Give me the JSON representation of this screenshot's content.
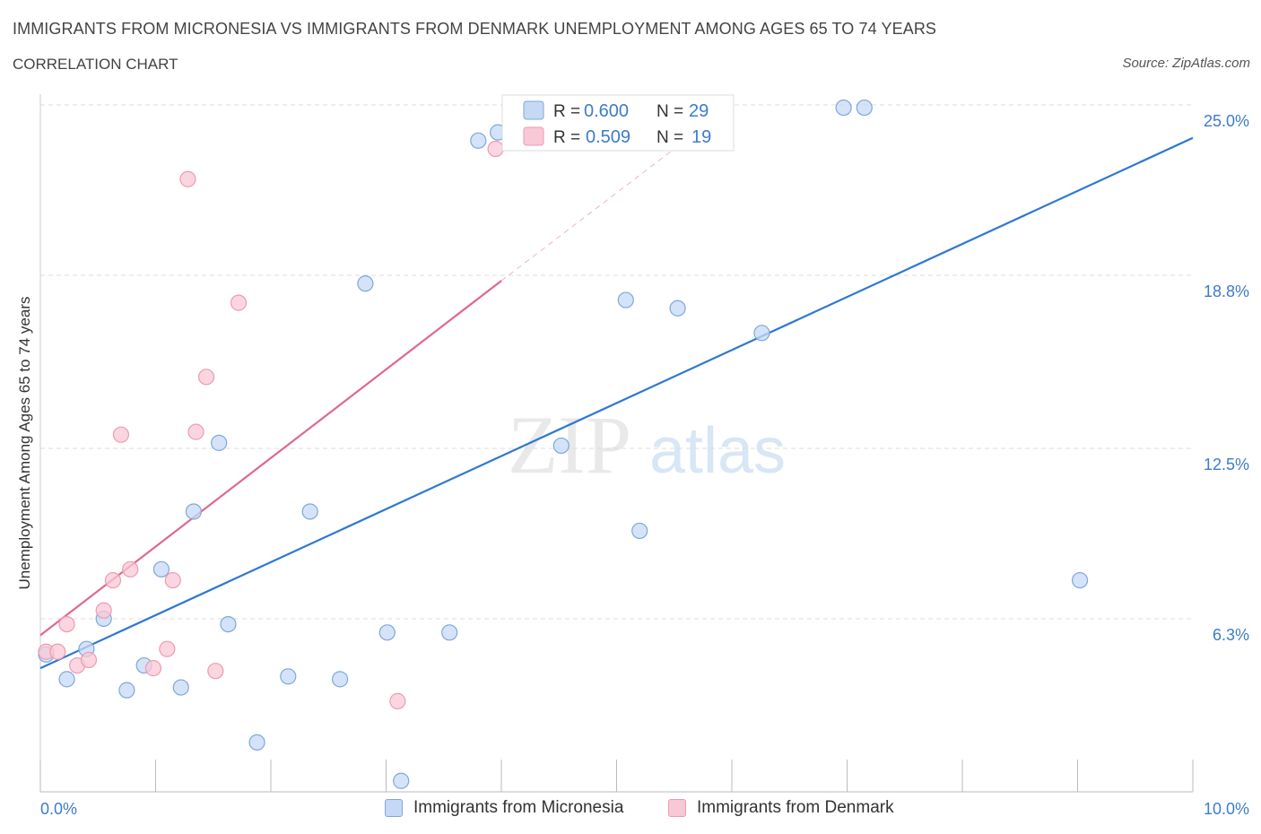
{
  "chart_data": {
    "type": "scatter",
    "title": "IMMIGRANTS FROM MICRONESIA VS IMMIGRANTS FROM DENMARK UNEMPLOYMENT AMONG AGES 65 TO 74 YEARS",
    "subtitle": "CORRELATION CHART",
    "source": "Source: ZipAtlas.com",
    "ylabel": "Unemployment Among Ages 65 to 74 years",
    "xlim": [
      0,
      10
    ],
    "ylim": [
      0,
      25
    ],
    "x_tick_labels": [
      {
        "value": 0,
        "label": "0.0%"
      },
      {
        "value": 10,
        "label": "10.0%"
      }
    ],
    "y_tick_labels": [
      {
        "value": 25.0,
        "label": "25.0%"
      },
      {
        "value": 18.8,
        "label": "18.8%"
      },
      {
        "value": 12.5,
        "label": "12.5%"
      },
      {
        "value": 6.3,
        "label": "6.3%"
      }
    ],
    "watermark": {
      "zip": "ZIP",
      "atlas": "atlas"
    },
    "stats_legend": [
      {
        "series": "micronesia",
        "r_label": "R =",
        "r": "0.600",
        "n_label": "N =",
        "n": "29"
      },
      {
        "series": "denmark",
        "r_label": "R =",
        "r": "0.509",
        "n_label": "N =",
        "n": "19"
      }
    ],
    "series": [
      {
        "key": "micronesia",
        "name": "Immigrants from Micronesia",
        "fill": "#c5d9f5",
        "stroke": "#7ea7dc",
        "line_color": "#2f78d0",
        "trend": {
          "x0": 0,
          "y0": 4.5,
          "x1": 10,
          "y1": 23.8
        },
        "points": [
          [
            0.05,
            5.0
          ],
          [
            0.23,
            4.1
          ],
          [
            0.4,
            5.2
          ],
          [
            0.55,
            6.3
          ],
          [
            0.75,
            3.7
          ],
          [
            0.9,
            4.6
          ],
          [
            1.05,
            8.1
          ],
          [
            1.22,
            3.8
          ],
          [
            1.33,
            10.2
          ],
          [
            1.55,
            12.7
          ],
          [
            1.63,
            6.1
          ],
          [
            1.88,
            1.8
          ],
          [
            2.15,
            4.2
          ],
          [
            2.34,
            10.2
          ],
          [
            2.6,
            4.1
          ],
          [
            2.82,
            18.5
          ],
          [
            3.01,
            5.8
          ],
          [
            3.13,
            0.4
          ],
          [
            3.55,
            5.8
          ],
          [
            3.8,
            23.7
          ],
          [
            3.97,
            24.0
          ],
          [
            4.52,
            12.6
          ],
          [
            5.08,
            17.9
          ],
          [
            5.2,
            9.5
          ],
          [
            5.53,
            17.6
          ],
          [
            6.26,
            16.7
          ],
          [
            6.97,
            24.9
          ],
          [
            7.15,
            24.9
          ],
          [
            9.02,
            7.7
          ]
        ]
      },
      {
        "key": "denmark",
        "name": "Immigrants from Denmark",
        "fill": "#f9c8d6",
        "stroke": "#ee9ab2",
        "line_color": "#e0678e",
        "trend": {
          "x0": 0,
          "y0": 5.7,
          "x1": 4.0,
          "y1": 18.6
        },
        "trend_dashed_to": {
          "x": 5.5,
          "y": 23.4
        },
        "points": [
          [
            0.05,
            5.1
          ],
          [
            0.15,
            5.1
          ],
          [
            0.23,
            6.1
          ],
          [
            0.32,
            4.6
          ],
          [
            0.42,
            4.8
          ],
          [
            0.55,
            6.6
          ],
          [
            0.63,
            7.7
          ],
          [
            0.7,
            13.0
          ],
          [
            0.78,
            8.1
          ],
          [
            0.98,
            4.5
          ],
          [
            1.1,
            5.2
          ],
          [
            1.15,
            7.7
          ],
          [
            1.28,
            22.3
          ],
          [
            1.35,
            13.1
          ],
          [
            1.44,
            15.1
          ],
          [
            1.52,
            4.4
          ],
          [
            1.72,
            17.8
          ],
          [
            3.1,
            3.3
          ],
          [
            3.95,
            23.4
          ]
        ]
      }
    ]
  }
}
